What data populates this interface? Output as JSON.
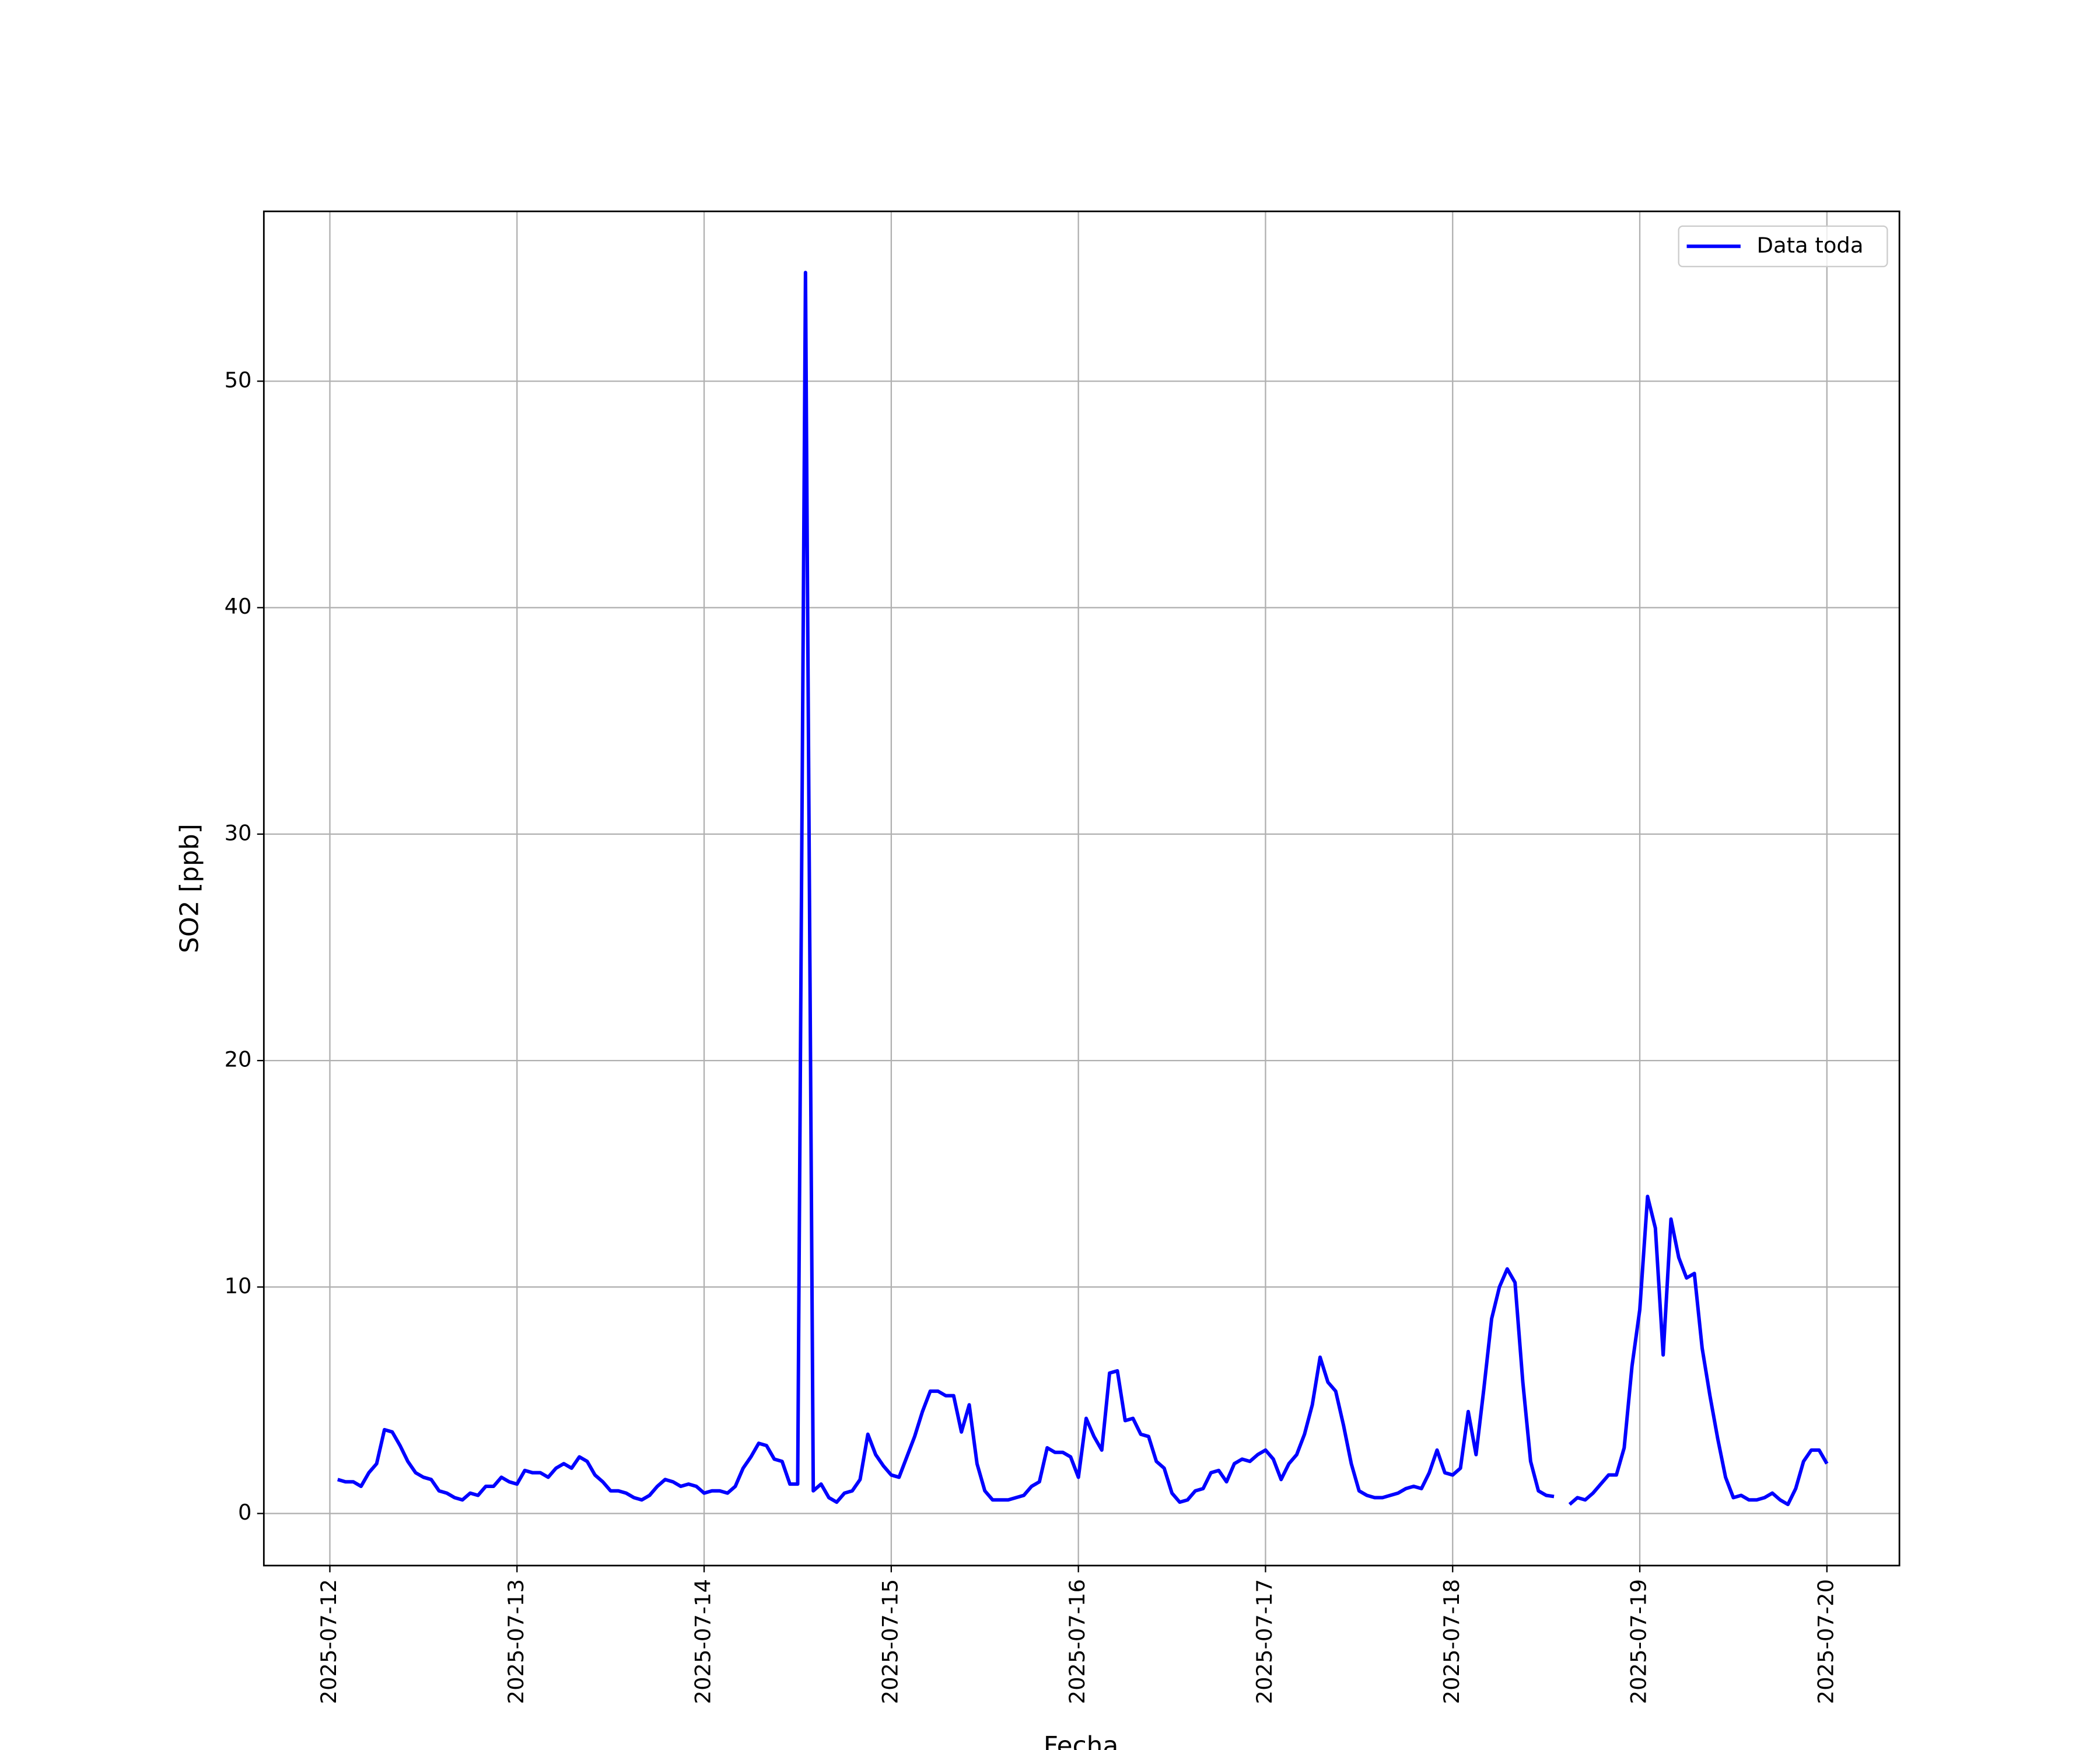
{
  "chart_data": {
    "type": "line",
    "xlabel": "Fecha",
    "ylabel": "SO2 [ppb]",
    "x": [
      "2025-07-12 01:00",
      "2025-07-12 02:00",
      "2025-07-12 03:00",
      "2025-07-12 04:00",
      "2025-07-12 05:00",
      "2025-07-12 06:00",
      "2025-07-12 07:00",
      "2025-07-12 08:00",
      "2025-07-12 09:00",
      "2025-07-12 10:00",
      "2025-07-12 11:00",
      "2025-07-12 12:00",
      "2025-07-12 13:00",
      "2025-07-12 14:00",
      "2025-07-12 15:00",
      "2025-07-12 16:00",
      "2025-07-12 17:00",
      "2025-07-12 18:00",
      "2025-07-12 19:00",
      "2025-07-12 20:00",
      "2025-07-12 21:00",
      "2025-07-12 22:00",
      "2025-07-12 23:00",
      "2025-07-13 00:00",
      "2025-07-13 01:00",
      "2025-07-13 02:00",
      "2025-07-13 03:00",
      "2025-07-13 04:00",
      "2025-07-13 05:00",
      "2025-07-13 06:00",
      "2025-07-13 07:00",
      "2025-07-13 08:00",
      "2025-07-13 09:00",
      "2025-07-13 10:00",
      "2025-07-13 11:00",
      "2025-07-13 12:00",
      "2025-07-13 13:00",
      "2025-07-13 14:00",
      "2025-07-13 15:00",
      "2025-07-13 16:00",
      "2025-07-13 17:00",
      "2025-07-13 18:00",
      "2025-07-13 19:00",
      "2025-07-13 20:00",
      "2025-07-13 21:00",
      "2025-07-13 22:00",
      "2025-07-13 23:00",
      "2025-07-14 00:00",
      "2025-07-14 01:00",
      "2025-07-14 02:00",
      "2025-07-14 03:00",
      "2025-07-14 04:00",
      "2025-07-14 05:00",
      "2025-07-14 06:00",
      "2025-07-14 07:00",
      "2025-07-14 08:00",
      "2025-07-14 09:00",
      "2025-07-14 10:00",
      "2025-07-14 11:00",
      "2025-07-14 12:00",
      "2025-07-14 13:00",
      "2025-07-14 14:00",
      "2025-07-14 15:00",
      "2025-07-14 16:00",
      "2025-07-14 17:00",
      "2025-07-14 18:00",
      "2025-07-14 19:00",
      "2025-07-14 20:00",
      "2025-07-14 21:00",
      "2025-07-14 22:00",
      "2025-07-14 23:00",
      "2025-07-15 00:00",
      "2025-07-15 01:00",
      "2025-07-15 02:00",
      "2025-07-15 03:00",
      "2025-07-15 04:00",
      "2025-07-15 05:00",
      "2025-07-15 06:00",
      "2025-07-15 07:00",
      "2025-07-15 08:00",
      "2025-07-15 09:00",
      "2025-07-15 10:00",
      "2025-07-15 11:00",
      "2025-07-15 12:00",
      "2025-07-15 13:00",
      "2025-07-15 14:00",
      "2025-07-15 15:00",
      "2025-07-15 16:00",
      "2025-07-15 17:00",
      "2025-07-15 18:00",
      "2025-07-15 19:00",
      "2025-07-15 20:00",
      "2025-07-15 21:00",
      "2025-07-15 22:00",
      "2025-07-15 23:00",
      "2025-07-16 00:00",
      "2025-07-16 01:00",
      "2025-07-16 02:00",
      "2025-07-16 03:00",
      "2025-07-16 04:00",
      "2025-07-16 05:00",
      "2025-07-16 06:00",
      "2025-07-16 07:00",
      "2025-07-16 08:00",
      "2025-07-16 09:00",
      "2025-07-16 10:00",
      "2025-07-16 11:00",
      "2025-07-16 12:00",
      "2025-07-16 13:00",
      "2025-07-16 14:00",
      "2025-07-16 15:00",
      "2025-07-16 16:00",
      "2025-07-16 17:00",
      "2025-07-16 18:00",
      "2025-07-16 19:00",
      "2025-07-16 20:00",
      "2025-07-16 21:00",
      "2025-07-16 22:00",
      "2025-07-16 23:00",
      "2025-07-17 00:00",
      "2025-07-17 01:00",
      "2025-07-17 02:00",
      "2025-07-17 03:00",
      "2025-07-17 04:00",
      "2025-07-17 05:00",
      "2025-07-17 06:00",
      "2025-07-17 07:00",
      "2025-07-17 08:00",
      "2025-07-17 09:00",
      "2025-07-17 10:00",
      "2025-07-17 11:00",
      "2025-07-17 12:00",
      "2025-07-17 13:00",
      "2025-07-17 14:00",
      "2025-07-17 15:00",
      "2025-07-17 16:00",
      "2025-07-17 17:00",
      "2025-07-17 18:00",
      "2025-07-17 19:00",
      "2025-07-17 20:00",
      "2025-07-17 21:00",
      "2025-07-17 22:00",
      "2025-07-17 23:00",
      "2025-07-18 00:00",
      "2025-07-18 01:00",
      "2025-07-18 02:00",
      "2025-07-18 03:00",
      "2025-07-18 04:00",
      "2025-07-18 05:00",
      "2025-07-18 06:00",
      "2025-07-18 07:00",
      "2025-07-18 08:00",
      "2025-07-18 09:00",
      "2025-07-18 10:00",
      "2025-07-18 11:00",
      "2025-07-18 12:00",
      "2025-07-18 13:00",
      "2025-07-18 14:00",
      "2025-07-18 15:00",
      "2025-07-18 16:00",
      "2025-07-18 17:00",
      "2025-07-18 18:00",
      "2025-07-18 19:00",
      "2025-07-18 20:00",
      "2025-07-18 21:00",
      "2025-07-18 22:00",
      "2025-07-18 23:00",
      "2025-07-19 00:00",
      "2025-07-19 01:00",
      "2025-07-19 02:00",
      "2025-07-19 03:00",
      "2025-07-19 04:00",
      "2025-07-19 05:00",
      "2025-07-19 06:00",
      "2025-07-19 07:00",
      "2025-07-19 08:00",
      "2025-07-19 09:00",
      "2025-07-19 10:00",
      "2025-07-19 11:00",
      "2025-07-19 12:00",
      "2025-07-19 13:00",
      "2025-07-19 14:00",
      "2025-07-19 15:00",
      "2025-07-19 16:00",
      "2025-07-19 17:00",
      "2025-07-19 18:00",
      "2025-07-19 19:00",
      "2025-07-19 20:00",
      "2025-07-19 21:00",
      "2025-07-19 22:00",
      "2025-07-19 23:00",
      "2025-07-20 00:00"
    ],
    "series": [
      {
        "name": "Data toda",
        "color": "#0000ff",
        "values": [
          1.5,
          1.4,
          1.4,
          1.2,
          1.8,
          2.2,
          3.7,
          3.6,
          3.0,
          2.3,
          1.8,
          1.6,
          1.5,
          1.0,
          0.9,
          0.7,
          0.6,
          0.9,
          0.8,
          1.2,
          1.2,
          1.6,
          1.4,
          1.3,
          1.9,
          1.8,
          1.8,
          1.6,
          2.0,
          2.2,
          2.0,
          2.5,
          2.3,
          1.7,
          1.4,
          1.0,
          1.0,
          0.9,
          0.7,
          0.6,
          0.8,
          1.2,
          1.5,
          1.4,
          1.2,
          1.3,
          1.2,
          0.9,
          1.0,
          1.0,
          0.9,
          1.2,
          2.0,
          2.5,
          3.1,
          3.0,
          2.4,
          2.3,
          1.3,
          1.3,
          54.8,
          1.0,
          1.3,
          0.7,
          0.5,
          0.9,
          1.0,
          1.5,
          3.5,
          2.6,
          2.1,
          1.7,
          1.6,
          2.5,
          3.4,
          4.5,
          5.4,
          5.4,
          5.2,
          5.2,
          3.6,
          4.8,
          2.2,
          1.0,
          0.6,
          0.6,
          0.6,
          0.7,
          0.8,
          1.2,
          1.4,
          2.9,
          2.7,
          2.7,
          2.5,
          1.6,
          4.2,
          3.4,
          2.8,
          6.2,
          6.3,
          4.1,
          4.2,
          3.5,
          3.4,
          2.3,
          2.0,
          0.9,
          0.5,
          0.6,
          1.0,
          1.1,
          1.8,
          1.9,
          1.4,
          2.2,
          2.4,
          2.3,
          2.6,
          2.8,
          2.4,
          1.5,
          2.2,
          2.6,
          3.5,
          4.8,
          6.9,
          5.8,
          5.4,
          3.9,
          2.2,
          1.0,
          0.8,
          0.7,
          0.7,
          0.8,
          0.9,
          1.1,
          1.2,
          1.1,
          1.8,
          2.8,
          1.8,
          1.7,
          2.0,
          4.5,
          2.6,
          5.5,
          8.6,
          10.0,
          10.8,
          10.2,
          5.8,
          2.3,
          1.0,
          0.8,
          0.75,
          null,
          0.4,
          0.7,
          0.6,
          0.9,
          1.3,
          1.7,
          1.7,
          2.9,
          6.5,
          9.0,
          14.0,
          12.6,
          7.0,
          13.0,
          11.3,
          10.4,
          10.6,
          7.3,
          5.2,
          3.3,
          1.6,
          0.7,
          0.8,
          0.6,
          0.6,
          0.7,
          0.9,
          0.6,
          0.4,
          1.1,
          2.3,
          2.8,
          2.8,
          2.2
        ]
      }
    ],
    "xlim": [
      "2025-07-11 15:32",
      "2025-07-20 09:18"
    ],
    "xticks": [
      "2025-07-12",
      "2025-07-13",
      "2025-07-14",
      "2025-07-15",
      "2025-07-16",
      "2025-07-17",
      "2025-07-18",
      "2025-07-19",
      "2025-07-20"
    ],
    "ylim": [
      -2.3,
      57.5
    ],
    "yticks": [
      0,
      10,
      20,
      30,
      40,
      50
    ],
    "grid": true,
    "legend": "upper right"
  }
}
